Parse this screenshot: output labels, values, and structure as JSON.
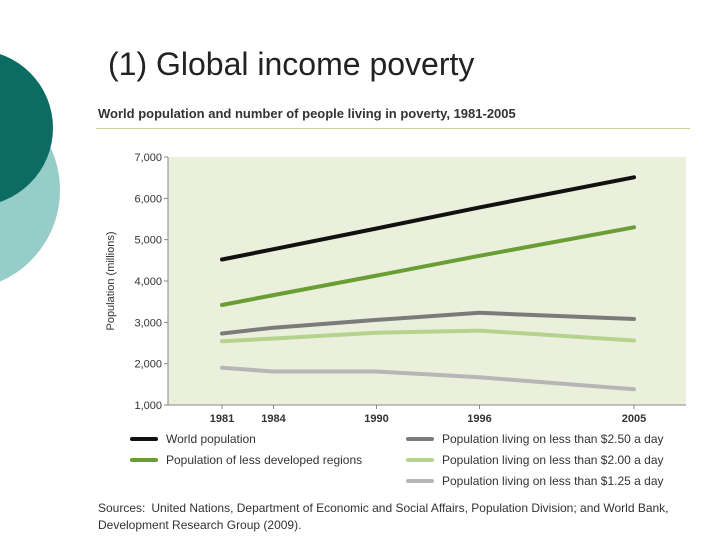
{
  "slide": {
    "title": "(1) Global income poverty"
  },
  "colors": {
    "deco_dark": "#0c6b62",
    "deco_light": "#97cdc8",
    "plot_background": "#eaf0dc",
    "rule": "#c9d49a"
  },
  "chart_data": {
    "type": "line",
    "title": "World population and number of people living in poverty, 1981-2005",
    "ylabel": "Population (millions)",
    "xlabel": "",
    "categories": [
      "1981",
      "1984",
      "1990",
      "1996",
      "2005"
    ],
    "x": [
      1981,
      1984,
      1990,
      1996,
      2005
    ],
    "ylim": [
      1000,
      7000
    ],
    "yticks": [
      "1,000",
      "2,000",
      "3,000",
      "4,000",
      "5,000",
      "6,000",
      "7,000"
    ],
    "grid": false,
    "legend_position": "bottom",
    "series": [
      {
        "name": "World population",
        "color": "#111111",
        "values": [
          4520,
          4770,
          5270,
          5780,
          6510
        ]
      },
      {
        "name": "Population of less developed regions",
        "color": "#6a9e35",
        "values": [
          3420,
          3660,
          4130,
          4610,
          5300
        ]
      },
      {
        "name": "Population living on less than $2.50 a day",
        "color": "#7b7b7b",
        "values": [
          2730,
          2870,
          3060,
          3230,
          3080
        ]
      },
      {
        "name": "Population living on less than $2.00 a day",
        "color": "#b6d28f",
        "values": [
          2540,
          2610,
          2750,
          2800,
          2560
        ]
      },
      {
        "name": "Population living on less than $1.25 a day",
        "color": "#b6b6b6",
        "values": [
          1900,
          1810,
          1810,
          1670,
          1380
        ]
      }
    ]
  },
  "sources": {
    "label": "Sources:",
    "text": "United Nations, Department of Economic and Social Affairs, Population Division; and World Bank, Development Research Group (2009)."
  }
}
